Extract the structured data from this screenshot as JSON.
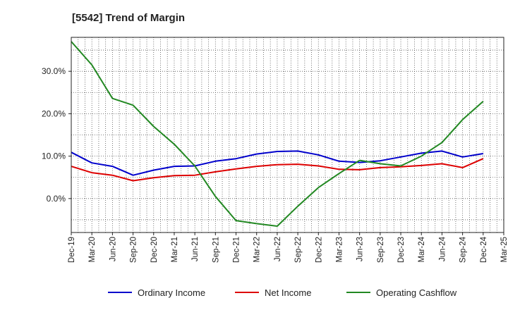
{
  "chart_data": {
    "type": "line",
    "title": "[5542]  Trend of Margin",
    "xlabel": "",
    "ylabel": "",
    "categories": [
      "Dec-19",
      "Mar-20",
      "Jun-20",
      "Sep-20",
      "Dec-20",
      "Mar-21",
      "Jun-21",
      "Sep-21",
      "Dec-21",
      "Mar-22",
      "Jun-22",
      "Sep-22",
      "Dec-22",
      "Mar-23",
      "Jun-23",
      "Sep-23",
      "Dec-23",
      "Mar-24",
      "Jun-24",
      "Sep-24",
      "Dec-24",
      "Mar-25"
    ],
    "ylim": [
      -8,
      38
    ],
    "yticks": [
      0,
      10,
      20,
      30
    ],
    "ytick_labels": [
      "0.0%",
      "10.0%",
      "20.0%",
      "30.0%"
    ],
    "grid": true,
    "legend_position": "bottom",
    "series": [
      {
        "name": "Ordinary Income",
        "color": "#0000cc",
        "values": [
          10.9,
          8.4,
          7.6,
          5.5,
          6.7,
          7.6,
          7.7,
          8.8,
          9.4,
          10.5,
          11.1,
          11.2,
          10.3,
          8.8,
          8.5,
          8.9,
          9.8,
          10.7,
          11.2,
          9.8,
          10.6,
          null
        ]
      },
      {
        "name": "Net Income",
        "color": "#dd0000",
        "values": [
          7.6,
          6.1,
          5.5,
          4.2,
          4.9,
          5.4,
          5.5,
          6.3,
          7.0,
          7.6,
          8.0,
          8.1,
          7.7,
          6.9,
          6.8,
          7.3,
          7.5,
          7.8,
          8.2,
          7.3,
          9.4,
          null
        ]
      },
      {
        "name": "Operating Cashflow",
        "color": "#228822",
        "values": [
          37.0,
          31.5,
          23.6,
          22.0,
          17.0,
          12.8,
          7.7,
          0.5,
          -5.2,
          -5.9,
          -6.5,
          -1.8,
          2.6,
          5.9,
          9.0,
          8.2,
          7.7,
          10.0,
          13.2,
          18.6,
          22.9,
          null
        ]
      }
    ]
  }
}
